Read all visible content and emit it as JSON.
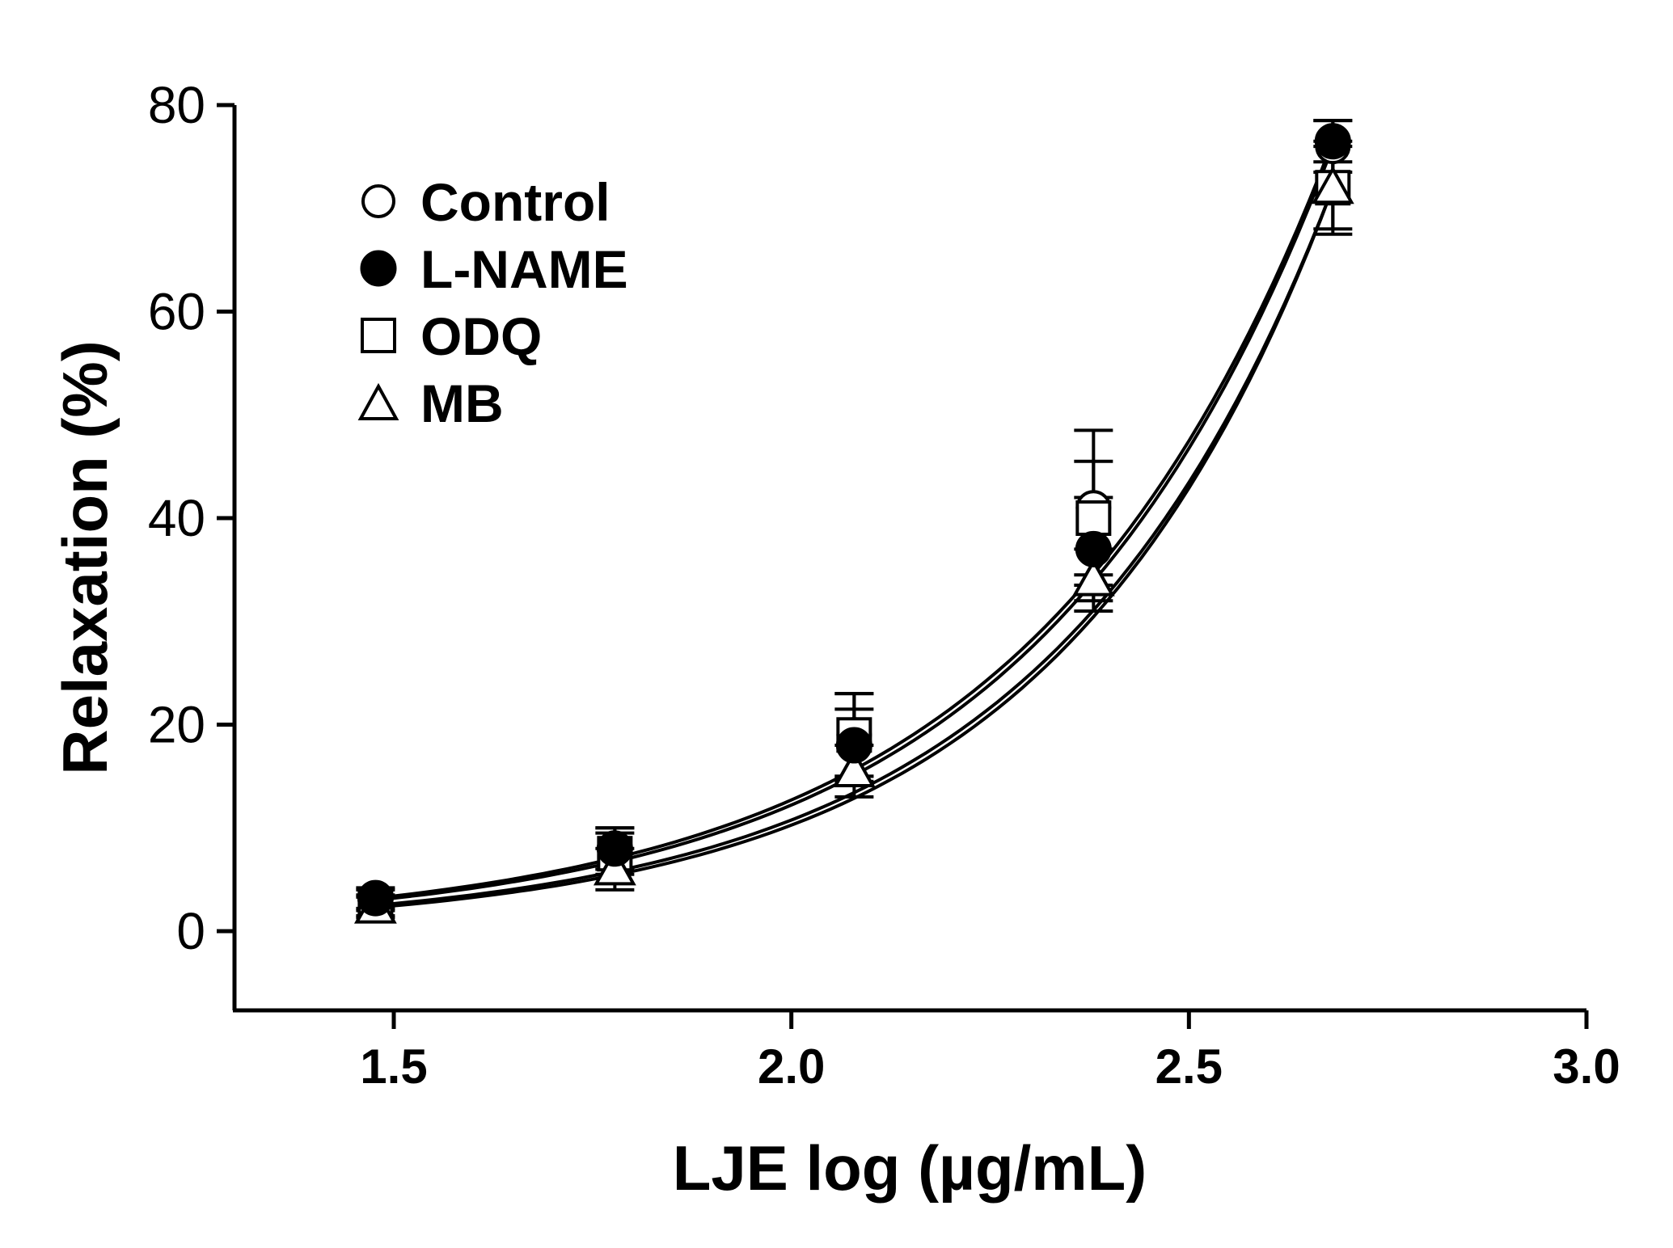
{
  "chart_data": {
    "type": "scatter",
    "title": "",
    "xlabel": "LJE log (µg/mL)",
    "ylabel": "Relaxation (%)",
    "xlim": [
      1.3,
      3.0
    ],
    "ylim": [
      -8,
      80
    ],
    "x_ticks": [
      1.5,
      2.0,
      2.5,
      3.0
    ],
    "x_tick_labels": [
      "1.5",
      "2.0",
      "2.5",
      "3.0"
    ],
    "y_ticks": [
      0,
      20,
      40,
      60,
      80
    ],
    "y_tick_labels": [
      "0",
      "20",
      "40",
      "60",
      "80"
    ],
    "grid": false,
    "legend_position": "top-left",
    "x": [
      1.477,
      1.778,
      2.079,
      2.38,
      2.681
    ],
    "series": [
      {
        "name": "Control",
        "marker": "open-circle",
        "values": [
          3.0,
          8.0,
          19.0,
          41.0,
          76.0
        ],
        "errors": [
          1.0,
          2.0,
          4.0,
          7.5,
          2.5
        ]
      },
      {
        "name": "L-NAME",
        "marker": "filled-circle",
        "values": [
          3.2,
          8.0,
          18.0,
          37.0,
          76.5
        ],
        "errors": [
          1.0,
          2.0,
          3.5,
          5.0,
          2.0
        ]
      },
      {
        "name": "ODQ",
        "marker": "open-square",
        "values": [
          2.5,
          7.5,
          19.0,
          40.0,
          72.0
        ],
        "errors": [
          1.0,
          2.0,
          4.0,
          5.5,
          4.5
        ]
      },
      {
        "name": "MB",
        "marker": "open-triangle",
        "values": [
          2.3,
          6.0,
          15.5,
          34.0,
          72.0
        ],
        "errors": [
          1.0,
          2.0,
          2.5,
          3.0,
          4.0
        ]
      }
    ]
  }
}
